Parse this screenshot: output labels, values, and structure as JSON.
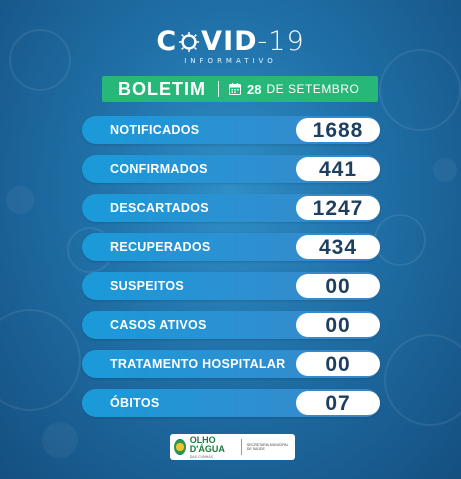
{
  "header": {
    "title_left": "C",
    "title_mid": "VID",
    "title_dash": "-",
    "title_num": "19",
    "subtitle": "INFORMATIVO"
  },
  "bulletin": {
    "label": "BOLETIM",
    "date_day": "28",
    "date_month": "DE SETEMBRO",
    "bar_color": "#27b779"
  },
  "stats": [
    {
      "label": "NOTIFICADOS",
      "value": "1688"
    },
    {
      "label": "CONFIRMADOS",
      "value": "441"
    },
    {
      "label": "DESCARTADOS",
      "value": "1247"
    },
    {
      "label": "RECUPERADOS",
      "value": "434"
    },
    {
      "label": "SUSPEITOS",
      "value": "00"
    },
    {
      "label": "CASOS ATIVOS",
      "value": "00"
    },
    {
      "label": "TRATAMENTO HOSPITALAR",
      "value": "00"
    },
    {
      "label": "ÓBITOS",
      "value": "07"
    }
  ],
  "footer": {
    "city": "OLHO D'ÁGUA",
    "city_sub": "DAS CUNHÃS",
    "secretaria": "SECRETARIA MUNICIPAL DE SAÚDE",
    "icons": [
      "seal-icon",
      "calendar-icon",
      "virus-icon"
    ]
  }
}
